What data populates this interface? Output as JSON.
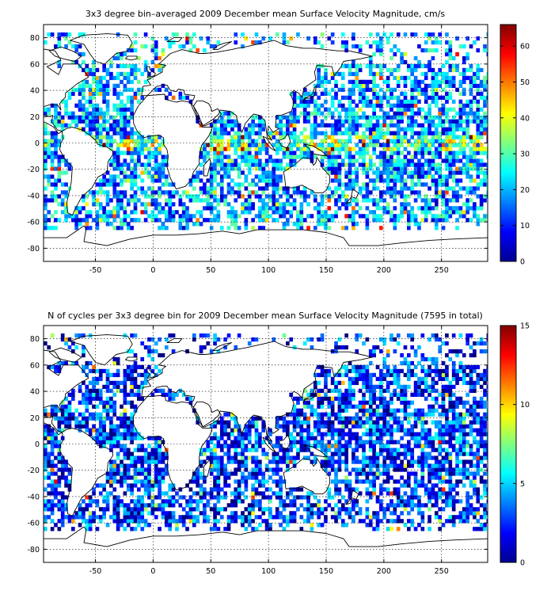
{
  "chart_data": [
    {
      "type": "heatmap",
      "title": "3x3 degree bin–averaged 2009 December mean Surface Velocity Magnitude, cm/s",
      "xlim": [
        -95,
        290
      ],
      "ylim": [
        -90,
        90
      ],
      "xticks": [
        -50,
        0,
        50,
        100,
        150,
        200,
        250
      ],
      "yticks": [
        -80,
        -60,
        -40,
        -20,
        0,
        20,
        40,
        60,
        80
      ],
      "grid": true,
      "colorbar": {
        "range": [
          0,
          66
        ],
        "ticks": [
          0,
          10,
          20,
          30,
          40,
          50,
          60
        ],
        "colormap": "jet",
        "position": "right"
      },
      "bin_size_deg": 3,
      "seed": 11,
      "coverage": 0.6,
      "value_model": {
        "base": 18,
        "spread": 14,
        "equatorial_boost": 22,
        "hotspot_boost": 35
      }
    },
    {
      "type": "heatmap",
      "title": "N of cycles per 3x3 degree bin for 2009 December mean Surface Velocity Magnitude (7595 in total)",
      "xlim": [
        -95,
        290
      ],
      "ylim": [
        -90,
        90
      ],
      "xticks": [
        -50,
        0,
        50,
        100,
        150,
        200,
        250
      ],
      "yticks": [
        -80,
        -60,
        -40,
        -20,
        0,
        20,
        40,
        60,
        80
      ],
      "grid": true,
      "colorbar": {
        "range": [
          0,
          15
        ],
        "ticks": [
          0,
          5,
          10,
          15
        ],
        "colormap": "jet",
        "position": "right"
      },
      "bin_size_deg": 3,
      "seed": 11,
      "coverage": 0.6,
      "value_model": {
        "base": 2.5,
        "spread": 3,
        "equatorial_boost": 1,
        "hotspot_boost": 8
      }
    }
  ],
  "colors": {
    "land_outline": "#000000",
    "ocean": "#ffffff"
  }
}
